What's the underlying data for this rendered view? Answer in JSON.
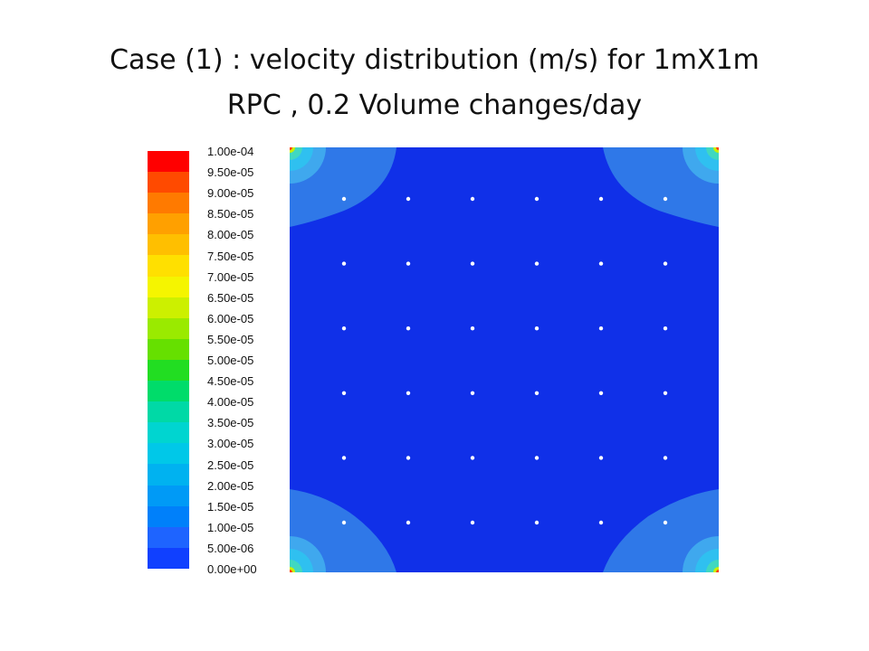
{
  "slide": {
    "title_line1": "Case (1)  : velocity distribution (m/s) for 1mX1m",
    "title_line2": "RPC ,  0.2 Volume changes/day"
  },
  "legend": {
    "ticks": [
      "1.00e-04",
      "9.50e-05",
      "9.00e-05",
      "8.50e-05",
      "8.00e-05",
      "7.50e-05",
      "7.00e-05",
      "6.50e-05",
      "6.00e-05",
      "5.50e-05",
      "5.00e-05",
      "4.50e-05",
      "4.00e-05",
      "3.50e-05",
      "3.00e-05",
      "2.50e-05",
      "2.00e-05",
      "1.50e-05",
      "1.00e-05",
      "5.00e-06",
      "0.00e+00"
    ],
    "colors": [
      "#ff0000",
      "#ff4a00",
      "#ff7a00",
      "#ffa000",
      "#ffbf00",
      "#ffe000",
      "#f5f500",
      "#ccf000",
      "#9aea00",
      "#66e000",
      "#22dd22",
      "#00dc6a",
      "#00d9a6",
      "#00d5d0",
      "#00c8e8",
      "#00b2f0",
      "#009af6",
      "#0080fa",
      "#1e64ff",
      "#1040ff"
    ]
  },
  "plot": {
    "background_color": "#1030e8",
    "corner_color": "#2f78e8",
    "grid": {
      "rows": 6,
      "cols": 6
    }
  }
}
